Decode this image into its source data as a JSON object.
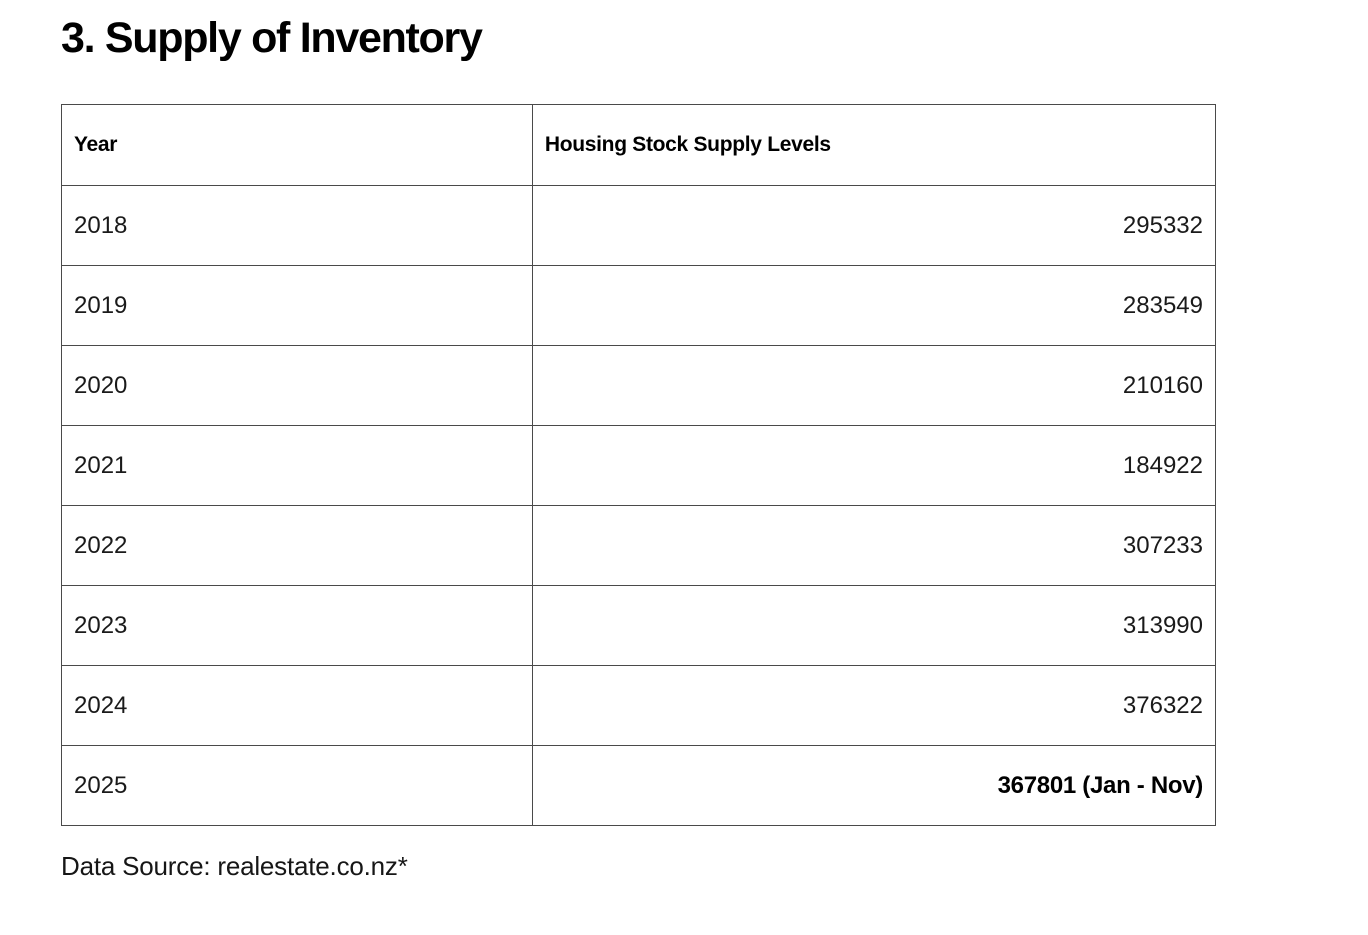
{
  "title": "3. Supply of Inventory",
  "table": {
    "columns": [
      "Year",
      "Housing Stock Supply Levels"
    ],
    "rows": [
      {
        "year": "2018",
        "value": "295332"
      },
      {
        "year": "2019",
        "value": "283549"
      },
      {
        "year": "2020",
        "value": "210160"
      },
      {
        "year": "2021",
        "value": "184922"
      },
      {
        "year": "2022",
        "value": "307233"
      },
      {
        "year": "2023",
        "value": "313990"
      },
      {
        "year": "2024",
        "value": "376322"
      },
      {
        "year": "2025",
        "value": "367801 (Jan - Nov)"
      }
    ]
  },
  "footer": "Data Source: realestate.co.nz*",
  "colors": {
    "background": "#ffffff",
    "text": "#121212",
    "border": "#4a4a4a"
  },
  "chart_data": {
    "type": "table",
    "title": "3. Supply of Inventory",
    "columns": [
      "Year",
      "Housing Stock Supply Levels"
    ],
    "years": [
      2018,
      2019,
      2020,
      2021,
      2022,
      2023,
      2024,
      2025
    ],
    "values": [
      295332,
      283549,
      210160,
      184922,
      307233,
      313990,
      376322,
      367801
    ],
    "annotations": {
      "2025": "Jan - Nov (partial year)"
    },
    "source": "realestate.co.nz*"
  }
}
